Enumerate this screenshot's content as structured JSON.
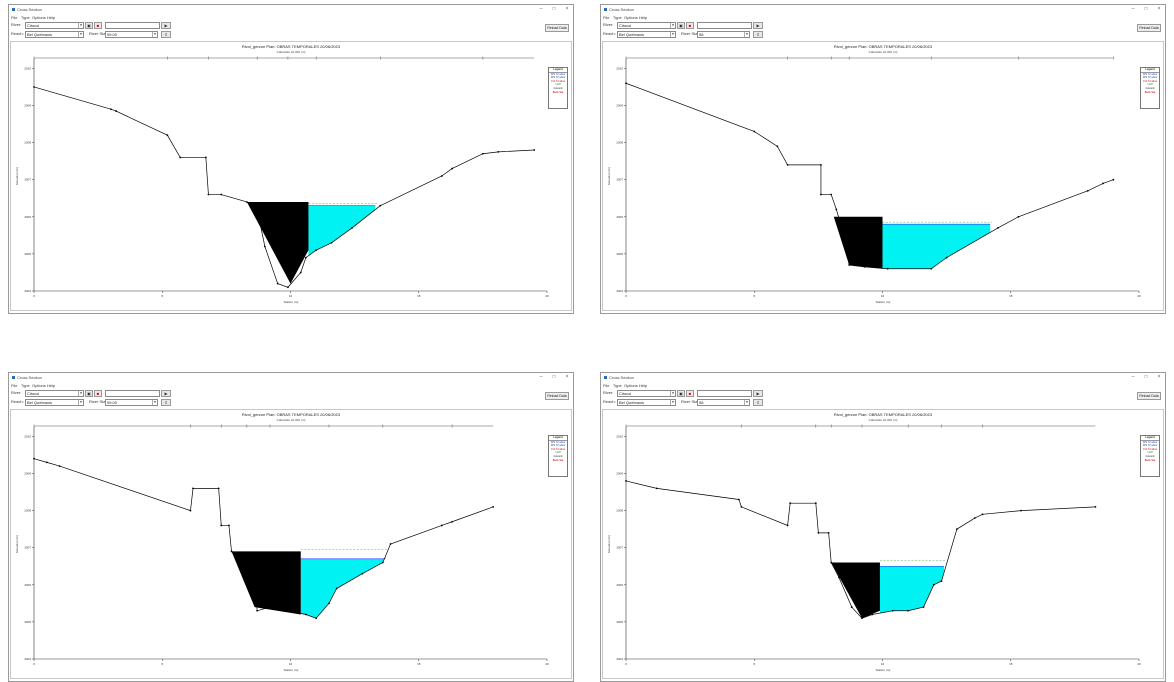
{
  "windows": [
    {
      "window_title": "Cross Section",
      "menu": [
        "File",
        "Type",
        "Options",
        "Help"
      ],
      "river_label": "River:",
      "river_value": "Citucol",
      "reach_label": "Reach:",
      "reach_value": "Bel Quebrada",
      "river_sta_label": "River Sta.:",
      "river_sta_value": "99.00",
      "reload_label": "Reload Data",
      "plot_title": "Rivol_gerzon      Plan: OBRAS TEMPORALES    20/06/2023",
      "plot_subtitle": "Calculado 10.000 (m)",
      "xlabel": "Station (m)",
      "ylabel": "Elevation (m)",
      "legend": [
        "Legend",
        "WS 72 años",
        "WS 72 años",
        "Crit 72 años",
        "Ineff",
        "Ground",
        "Bank Sta"
      ],
      "x_ticks": [
        "0",
        "5",
        "10",
        "15",
        "20"
      ],
      "y_ticks": [
        "2010",
        "2009",
        "2008",
        "2007",
        "2006",
        "2005",
        "2004"
      ],
      "chart_data": {
        "type": "cross-section",
        "xlim": [
          0,
          20
        ],
        "ylim": [
          2004,
          2010.2
        ],
        "ground": [
          [
            0,
            2009.5
          ],
          [
            3,
            2008.9
          ],
          [
            3.2,
            2008.85
          ],
          [
            5.2,
            2008.2
          ],
          [
            5.7,
            2007.6
          ],
          [
            6.7,
            2007.6
          ],
          [
            6.8,
            2006.6
          ],
          [
            7.3,
            2006.6
          ],
          [
            8.3,
            2006.4
          ],
          [
            8.7,
            2006.2
          ],
          [
            9.0,
            2005.2
          ],
          [
            9.5,
            2004.2
          ],
          [
            9.9,
            2004.1
          ],
          [
            10.4,
            2004.5
          ],
          [
            10.6,
            2004.9
          ],
          [
            11.0,
            2005.1
          ],
          [
            11.6,
            2005.3
          ],
          [
            12.4,
            2005.7
          ],
          [
            13.5,
            2006.3
          ],
          [
            15.9,
            2007.1
          ],
          [
            16.3,
            2007.3
          ],
          [
            17.5,
            2007.7
          ],
          [
            18.1,
            2007.75
          ],
          [
            19.5,
            2007.8
          ]
        ],
        "obstruction": [
          [
            8.3,
            2006.4
          ],
          [
            10.7,
            2006.4
          ],
          [
            10.7,
            2005.1
          ],
          [
            10.0,
            2004.2
          ]
        ],
        "ws": 2006.3,
        "ws_x": [
          10.7,
          13.3
        ],
        "crit": 2006.3
      }
    },
    {
      "window_title": "Cross Section",
      "menu": [
        "File",
        "Type",
        "Options",
        "Help"
      ],
      "river_label": "River:",
      "river_value": "Citucol",
      "reach_label": "Reach:",
      "reach_value": "Bel Quebrada",
      "river_sta_label": "River Sta.:",
      "river_sta_value": "98",
      "reload_label": "Reload Data",
      "plot_title": "Rivol_gerzon      Plan: OBRAS TEMPORALES    20/06/2023",
      "plot_subtitle": "Calculado 10.000 (m)",
      "xlabel": "Station (m)",
      "ylabel": "Elevation (m)",
      "legend": [
        "Legend",
        "WS 72 años",
        "WS 72 años",
        "Crit 72 años",
        "Ineff",
        "Ground",
        "Bank Sta"
      ],
      "x_ticks": [
        "0",
        "5",
        "10",
        "15",
        "20"
      ],
      "y_ticks": [
        "2010",
        "2009",
        "2008",
        "2007",
        "2006",
        "2005",
        "2004"
      ],
      "chart_data": {
        "type": "cross-section",
        "xlim": [
          0,
          20
        ],
        "ylim": [
          2004,
          2010.2
        ],
        "ground": [
          [
            0,
            2009.6
          ],
          [
            5,
            2008.3
          ],
          [
            5.9,
            2007.9
          ],
          [
            6.3,
            2007.4
          ],
          [
            7.6,
            2007.4
          ],
          [
            7.6,
            2006.6
          ],
          [
            8.0,
            2006.6
          ],
          [
            8.2,
            2006.2
          ],
          [
            8.5,
            2005.5
          ],
          [
            8.7,
            2004.7
          ],
          [
            9.3,
            2004.65
          ],
          [
            10.2,
            2004.6
          ],
          [
            11.9,
            2004.6
          ],
          [
            12.5,
            2004.9
          ],
          [
            14.5,
            2005.7
          ],
          [
            15.3,
            2006.0
          ],
          [
            18.0,
            2006.7
          ],
          [
            18.6,
            2006.9
          ],
          [
            19.0,
            2007.0
          ]
        ],
        "obstruction": [
          [
            8.1,
            2006.0
          ],
          [
            10.0,
            2006.0
          ],
          [
            10.0,
            2004.6
          ],
          [
            8.7,
            2004.7
          ]
        ],
        "ws": 2005.8,
        "ws_x": [
          10.0,
          14.2
        ],
        "crit": 2005.8
      }
    },
    {
      "window_title": "Cross Section",
      "menu": [
        "File",
        "Type",
        "Options",
        "Help"
      ],
      "river_label": "River:",
      "river_value": "Citucol",
      "reach_label": "Reach:",
      "reach_value": "Bel Quebrada",
      "river_sta_label": "River Sta.:",
      "river_sta_value": "99.00",
      "reload_label": "Reload Data",
      "plot_title": "Rivol_gerzon      Plan: OBRAS TEMPORALES    20/06/2023",
      "plot_subtitle": "Calculado 10.000 (m)",
      "xlabel": "Station (m)",
      "ylabel": "Elevation (m)",
      "legend": [
        "Legend",
        "WS 72 años",
        "WS 72 años",
        "Crit 72 años",
        "Ineff",
        "Ground",
        "Bank Sta"
      ],
      "x_ticks": [
        "0",
        "5",
        "10",
        "15",
        "20"
      ],
      "y_ticks": [
        "2010",
        "2009",
        "2008",
        "2007",
        "2006",
        "2005",
        "2004"
      ],
      "chart_data": {
        "type": "cross-section",
        "xlim": [
          0,
          20
        ],
        "ylim": [
          2004,
          2010.2
        ],
        "ground": [
          [
            0,
            2009.4
          ],
          [
            0.5,
            2009.3
          ],
          [
            1,
            2009.2
          ],
          [
            6.1,
            2008.0
          ],
          [
            6.2,
            2008.6
          ],
          [
            7.2,
            2008.6
          ],
          [
            7.3,
            2007.6
          ],
          [
            7.6,
            2007.6
          ],
          [
            7.7,
            2006.9
          ],
          [
            8.3,
            2006.6
          ],
          [
            8.6,
            2006.1
          ],
          [
            8.7,
            2005.3
          ],
          [
            9.2,
            2005.4
          ],
          [
            10.6,
            2005.2
          ],
          [
            11.0,
            2005.1
          ],
          [
            11.5,
            2005.5
          ],
          [
            11.8,
            2005.9
          ],
          [
            12.8,
            2006.3
          ],
          [
            13.6,
            2006.6
          ],
          [
            13.9,
            2007.1
          ],
          [
            15.9,
            2007.6
          ],
          [
            16.3,
            2007.7
          ],
          [
            17.9,
            2008.1
          ]
        ],
        "obstruction": [
          [
            7.7,
            2006.9
          ],
          [
            10.4,
            2006.9
          ],
          [
            10.4,
            2005.2
          ],
          [
            8.6,
            2005.4
          ]
        ],
        "ws": 2006.7,
        "ws_x": [
          10.4,
          13.7
        ],
        "crit": 2006.9
      }
    },
    {
      "window_title": "Cross Section",
      "menu": [
        "File",
        "Type",
        "Options",
        "Help"
      ],
      "river_label": "River:",
      "river_value": "Citucol",
      "reach_label": "Reach:",
      "reach_value": "Bel Quebrada",
      "river_sta_label": "River Sta.:",
      "river_sta_value": "98",
      "reload_label": "Reload Data",
      "plot_title": "Rivol_gerzon      Plan: OBRAS TEMPORALES    20/06/2023",
      "plot_subtitle": "Calculado 10.000 (m)",
      "xlabel": "Station (m)",
      "ylabel": "Elevation (m)",
      "legend": [
        "Legend",
        "WS 72 años",
        "WS 72 años",
        "Crit 72 años",
        "Ineff",
        "Ground",
        "Bank Sta"
      ],
      "x_ticks": [
        "0",
        "5",
        "10",
        "15",
        "20"
      ],
      "y_ticks": [
        "2010",
        "2009",
        "2008",
        "2007",
        "2006",
        "2005",
        "2004"
      ],
      "chart_data": {
        "type": "cross-section",
        "xlim": [
          0,
          20
        ],
        "ylim": [
          2004,
          2010.2
        ],
        "ground": [
          [
            0,
            2008.8
          ],
          [
            1.2,
            2008.6
          ],
          [
            4.4,
            2008.3
          ],
          [
            4.5,
            2008.1
          ],
          [
            6.3,
            2007.6
          ],
          [
            6.4,
            2008.2
          ],
          [
            7.4,
            2008.2
          ],
          [
            7.5,
            2007.4
          ],
          [
            7.9,
            2007.4
          ],
          [
            8.0,
            2006.6
          ],
          [
            8.3,
            2006.2
          ],
          [
            8.8,
            2005.4
          ],
          [
            9.2,
            2005.1
          ],
          [
            9.6,
            2005.2
          ],
          [
            10.4,
            2005.3
          ],
          [
            11.0,
            2005.3
          ],
          [
            11.6,
            2005.4
          ],
          [
            12.0,
            2006.0
          ],
          [
            12.3,
            2006.1
          ],
          [
            12.9,
            2007.5
          ],
          [
            13.6,
            2007.8
          ],
          [
            13.9,
            2007.9
          ],
          [
            15.4,
            2008.0
          ],
          [
            18.3,
            2008.1
          ]
        ],
        "obstruction": [
          [
            8.0,
            2006.6
          ],
          [
            9.9,
            2006.6
          ],
          [
            9.9,
            2005.3
          ],
          [
            9.2,
            2005.1
          ]
        ],
        "ws": 2006.5,
        "ws_x": [
          9.9,
          12.4
        ],
        "crit": 2006.6
      }
    }
  ]
}
